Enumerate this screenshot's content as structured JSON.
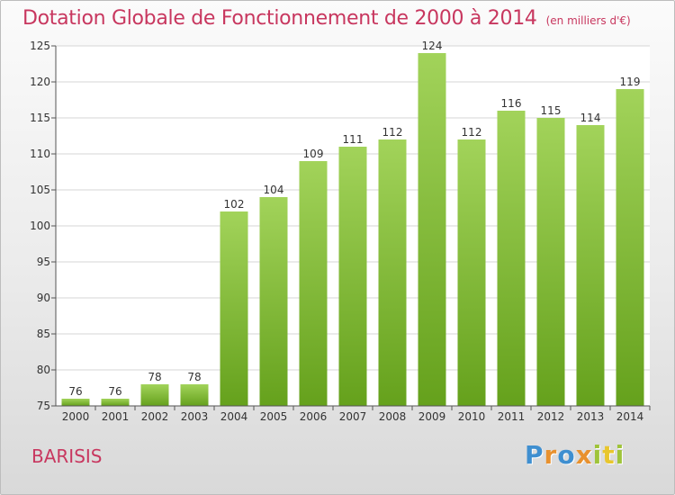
{
  "header": {
    "title": "Dotation Globale de Fonctionnement de 2000 à 2014",
    "unit": "(en milliers d'€)"
  },
  "place": "BARISIS",
  "logo": {
    "text": "Proxiti"
  },
  "colors": {
    "title": "#c8375f",
    "bar_light": "#a2d35a",
    "bar_dark": "#65a11c",
    "grid": "#d6d6d6"
  },
  "chart_data": {
    "type": "bar",
    "title": "Dotation Globale de Fonctionnement de 2000 à 2014",
    "subtitle": "(en milliers d'€)",
    "xlabel": "",
    "ylabel": "",
    "categories": [
      "2000",
      "2001",
      "2002",
      "2003",
      "2004",
      "2005",
      "2006",
      "2007",
      "2008",
      "2009",
      "2010",
      "2011",
      "2012",
      "2013",
      "2014"
    ],
    "values": [
      76,
      76,
      78,
      78,
      102,
      104,
      109,
      111,
      112,
      124,
      112,
      116,
      115,
      114,
      119
    ],
    "ylim": [
      75,
      125
    ],
    "yticks": [
      75,
      80,
      85,
      90,
      95,
      100,
      105,
      110,
      115,
      120,
      125
    ],
    "grid": true,
    "data_labels": true
  }
}
